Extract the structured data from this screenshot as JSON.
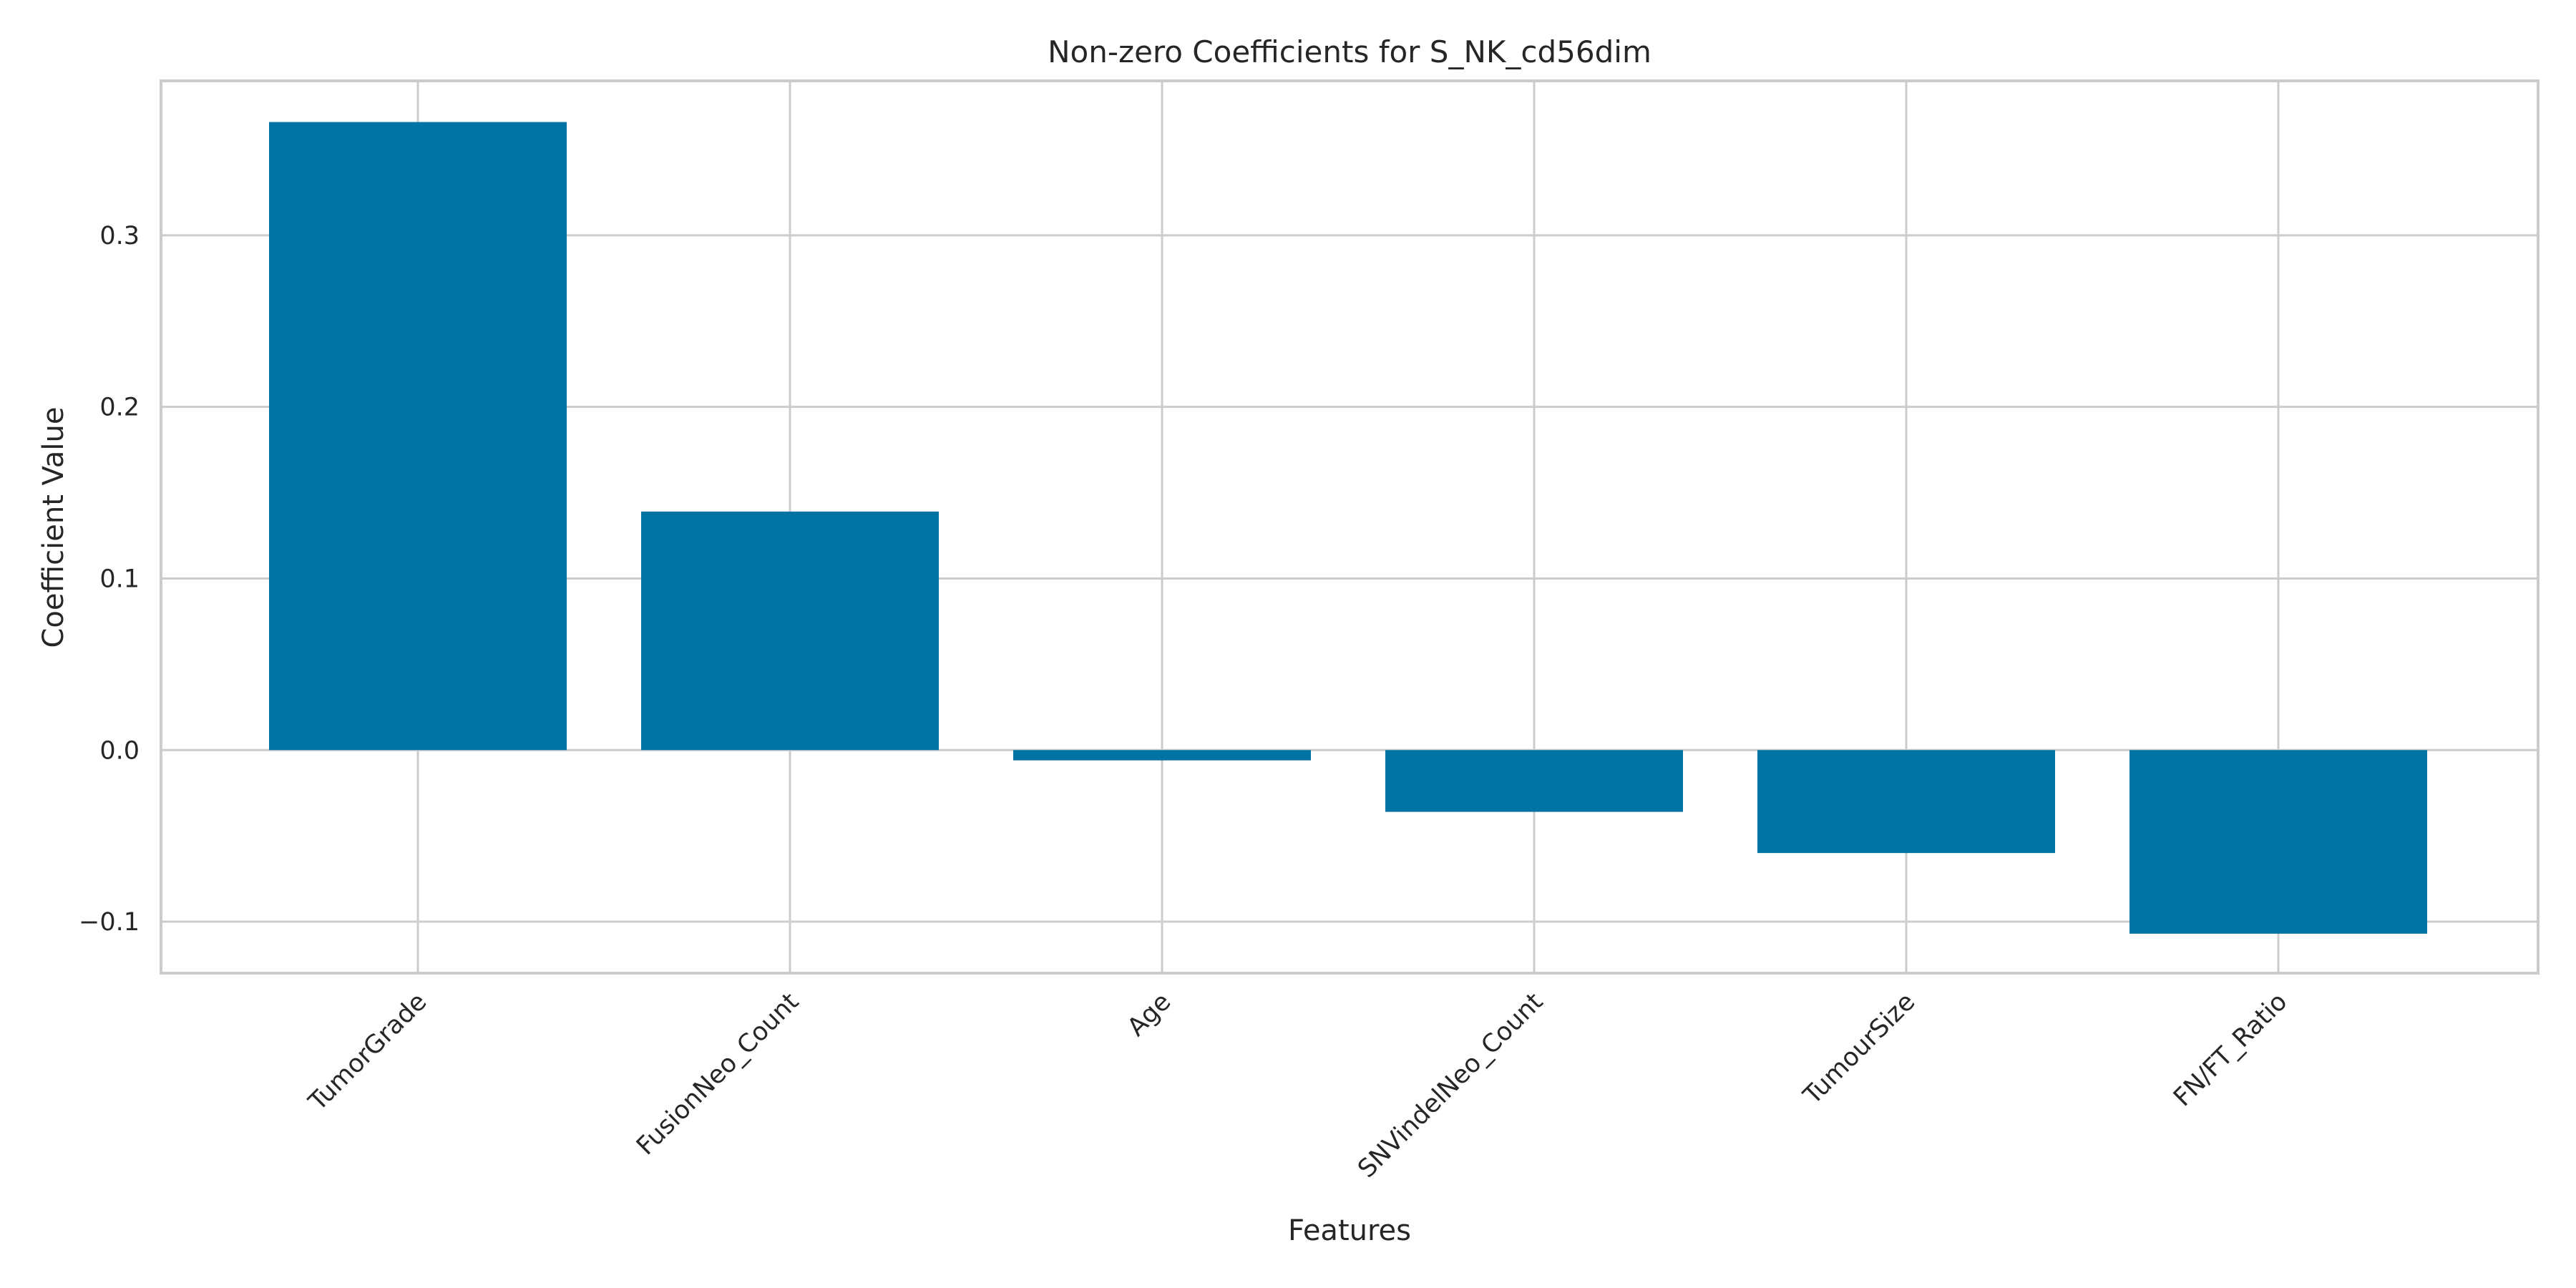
{
  "chart_data": {
    "type": "bar",
    "title": "Non-zero Coefficients for S_NK_cd56dim",
    "xlabel": "Features",
    "ylabel": "Coefficient Value",
    "categories": [
      "TumorGrade",
      "FusionNeo_Count",
      "Age",
      "SNVindelNeo_Count",
      "TumourSize",
      "FN/FT_Ratio"
    ],
    "values": [
      0.366,
      0.139,
      -0.006,
      -0.036,
      -0.06,
      -0.107
    ],
    "yticks": [
      -0.1,
      0.0,
      0.1,
      0.2,
      0.3
    ],
    "ytick_labels": [
      "−0.1",
      "0.0",
      "0.1",
      "0.2",
      "0.3"
    ],
    "ylim": [
      -0.13,
      0.39
    ],
    "grid": true,
    "bar_color": "#0173a2",
    "grid_color": "#cccccc"
  }
}
